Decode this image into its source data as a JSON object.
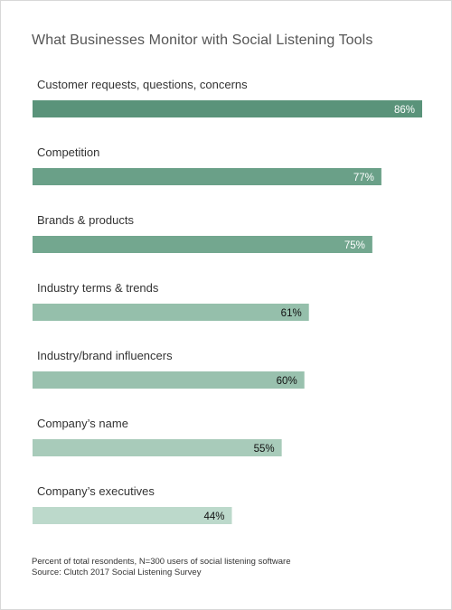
{
  "chart_data": {
    "type": "bar",
    "orientation": "horizontal",
    "title": "What Businesses Monitor with Social Listening Tools",
    "categories": [
      "Customer requests, questions, concerns",
      "Competition",
      "Brands & products",
      "Industry terms & trends",
      "Industry/brand influencers",
      "Company’s name",
      "Company’s executives"
    ],
    "values": [
      86,
      77,
      75,
      61,
      60,
      55,
      44
    ],
    "value_labels": [
      "86%",
      "77%",
      "75%",
      "61%",
      "60%",
      "55%",
      "44%"
    ],
    "xlim": [
      0,
      86
    ],
    "grid": false,
    "legend": "none",
    "colors": [
      "#5a937a",
      "#6aa088",
      "#73a78f",
      "#95bfab",
      "#99c1ae",
      "#a8cbba",
      "#bcd9cb"
    ],
    "value_text_colors": [
      "#ffffff",
      "#ffffff",
      "#ffffff",
      "#111111",
      "#111111",
      "#111111",
      "#111111"
    ]
  },
  "footnote": {
    "line1": "Percent of total resondents, N=300 users of social listening software",
    "line2": "Source: Clutch 2017 Social Listening Survey"
  }
}
